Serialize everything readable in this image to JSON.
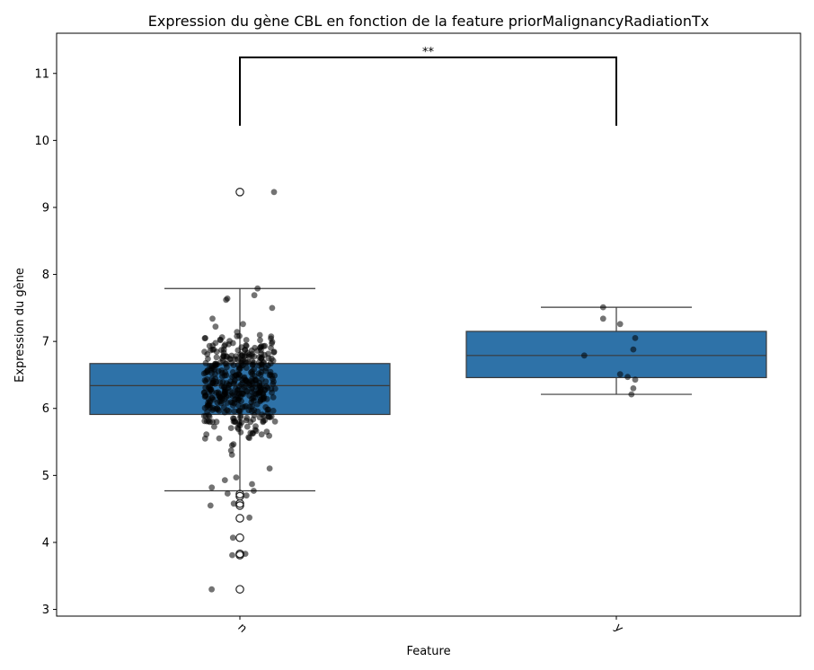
{
  "chart_data": {
    "type": "box",
    "title": "Expression du gène CBL en fonction de la feature priorMalignancyRadiationTx",
    "xlabel": "Feature",
    "ylabel": "Expression du gène",
    "categories": [
      "n",
      "y"
    ],
    "ylim": [
      2.9,
      11.6
    ],
    "yticks": [
      "3",
      "4",
      "5",
      "6",
      "7",
      "8",
      "9",
      "10",
      "11"
    ],
    "box_color": "#2e72a8",
    "point_color": "#000000",
    "boxes": [
      {
        "category": "n",
        "q1": 5.91,
        "median": 6.34,
        "q3": 6.67,
        "whisker_low": 4.77,
        "whisker_high": 7.79,
        "outliers": [
          9.23,
          4.72,
          4.69,
          4.58,
          4.55,
          4.36,
          4.07,
          3.83,
          3.81,
          3.3
        ]
      },
      {
        "category": "y",
        "q1": 6.46,
        "median": 6.79,
        "q3": 7.15,
        "whisker_low": 6.21,
        "whisker_high": 7.51,
        "outliers": []
      }
    ],
    "points_y": [
      {
        "x": -0.07,
        "y": 7.51
      },
      {
        "x": -0.07,
        "y": 7.34
      },
      {
        "x": 0.02,
        "y": 7.26
      },
      {
        "x": 0.1,
        "y": 7.05
      },
      {
        "x": 0.09,
        "y": 6.88
      },
      {
        "x": -0.17,
        "y": 6.79
      },
      {
        "x": 0.02,
        "y": 6.51
      },
      {
        "x": 0.06,
        "y": 6.47
      },
      {
        "x": 0.1,
        "y": 6.43
      },
      {
        "x": 0.09,
        "y": 6.3
      },
      {
        "x": 0.08,
        "y": 6.21
      }
    ],
    "points_n_sample": [
      9.23,
      7.79,
      7.69,
      7.64,
      7.62,
      7.5,
      7.34,
      7.26,
      7.22,
      7.14,
      4.97,
      4.93,
      4.87,
      4.82,
      4.77,
      4.73,
      4.7,
      4.58,
      4.55,
      4.37,
      4.07,
      3.83,
      3.81,
      3.3
    ],
    "significance": {
      "label": "**",
      "from": "n",
      "to": "y",
      "y": 11.24,
      "drop_to": 10.22
    }
  }
}
